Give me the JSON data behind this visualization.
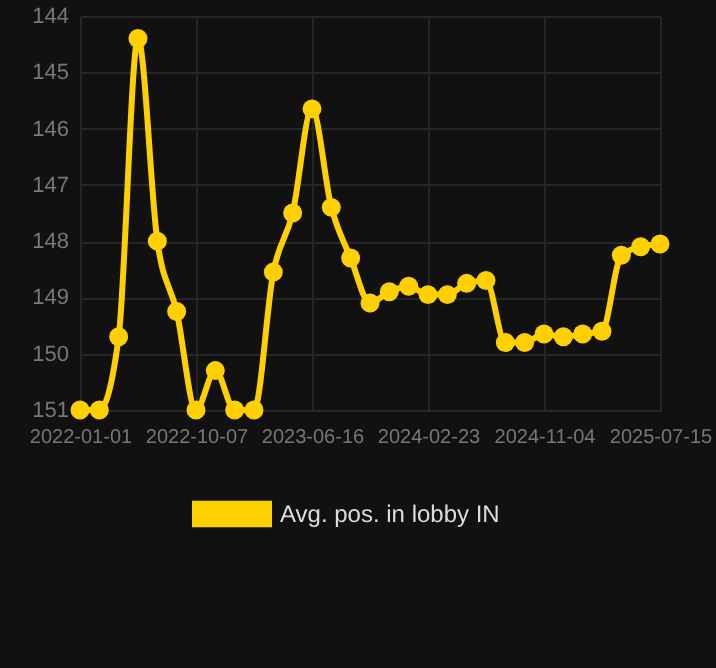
{
  "chart_data": {
    "type": "line",
    "categories": [
      "2022-01-01",
      null,
      null,
      null,
      null,
      null,
      "2022-10-07",
      null,
      null,
      null,
      null,
      null,
      "2023-06-16",
      null,
      null,
      null,
      null,
      null,
      "2024-02-23",
      null,
      null,
      null,
      null,
      null,
      "2024-11-04",
      null,
      null,
      null,
      null,
      null,
      "2025-07-15"
    ],
    "series": [
      {
        "name": "Avg. pos. in lobby IN",
        "color": "#ffd000",
        "values": [
          151.0,
          151.0,
          149.7,
          144.4,
          148.0,
          149.25,
          151.0,
          150.3,
          151.0,
          151.0,
          148.55,
          147.5,
          145.65,
          147.4,
          148.3,
          149.1,
          148.9,
          148.8,
          148.95,
          148.95,
          148.75,
          148.7,
          149.8,
          149.8,
          149.65,
          149.7,
          149.65,
          149.6,
          148.25,
          148.1,
          148.05
        ]
      }
    ],
    "ylim": [
      151,
      144
    ],
    "yticks": [
      144,
      145,
      146,
      147,
      148,
      149,
      150,
      151
    ],
    "grid": true,
    "legend": "bottom",
    "marker": "circle",
    "line_style": "solid"
  }
}
